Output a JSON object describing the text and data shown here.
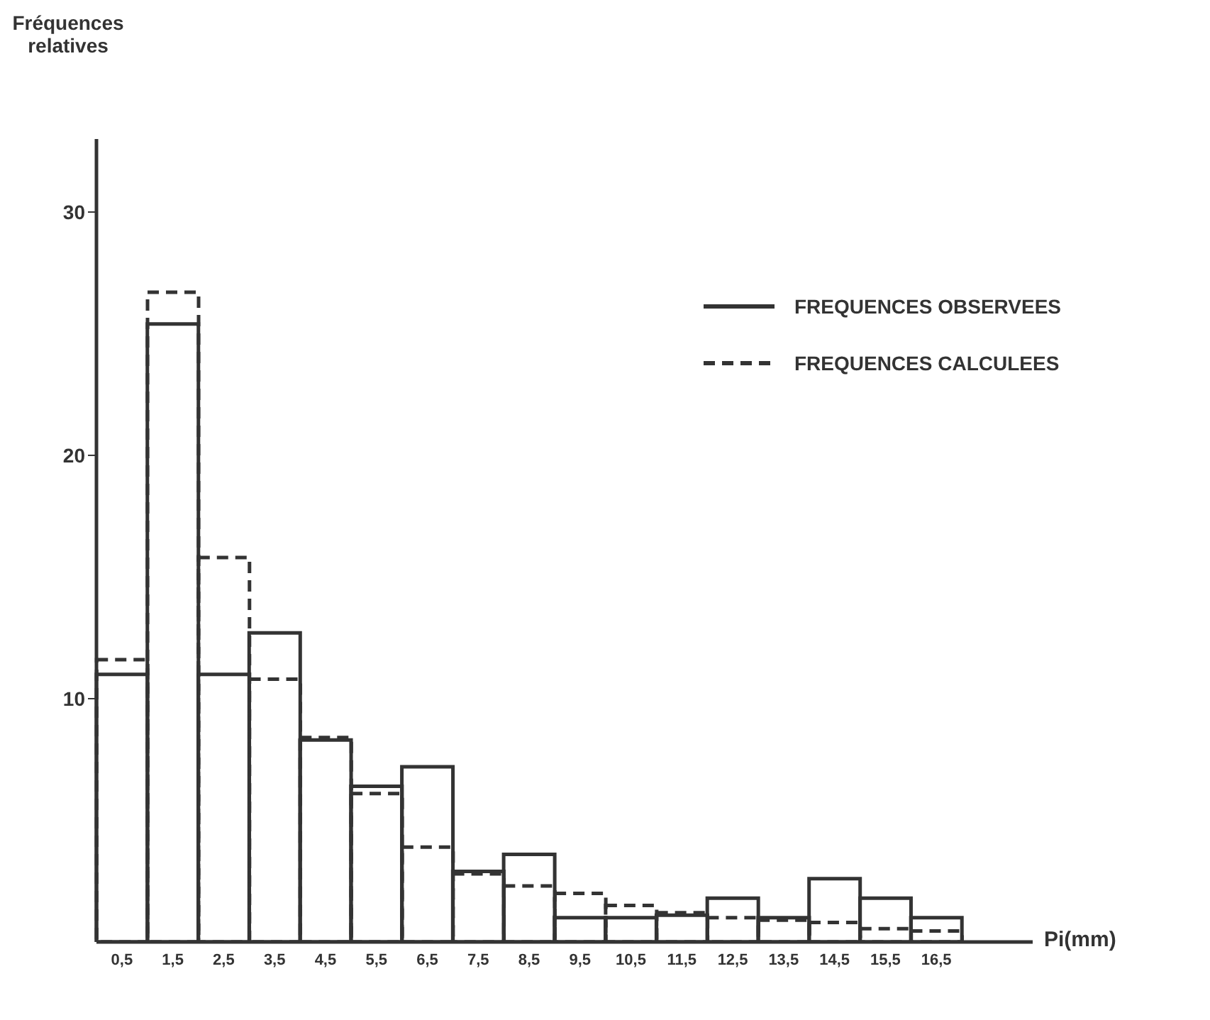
{
  "chart_data": {
    "type": "bar",
    "ylabel": "Fréquences relatives",
    "xlabel": "Pi(mm)",
    "categories": [
      "0,5",
      "1,5",
      "2,5",
      "3,5",
      "4,5",
      "5,5",
      "6,5",
      "7,5",
      "8,5",
      "9,5",
      "10,5",
      "11,5",
      "12,5",
      "13,5",
      "14,5",
      "15,5",
      "16,5"
    ],
    "series": [
      {
        "name": "FREQUENCES OBSERVEES",
        "color": "#333333",
        "line_style": "solid",
        "values": [
          11.0,
          25.4,
          11.0,
          12.7,
          8.3,
          6.4,
          7.2,
          2.9,
          3.6,
          1.0,
          1.0,
          1.1,
          1.8,
          1.0,
          2.6,
          1.8,
          1.0
        ]
      },
      {
        "name": "FREQUENCES CALCULEES",
        "color": "#333333",
        "line_style": "dashed",
        "values": [
          11.6,
          26.7,
          15.8,
          10.8,
          8.4,
          6.1,
          3.9,
          2.8,
          2.3,
          2.0,
          1.5,
          1.2,
          1.0,
          0.9,
          0.8,
          0.55,
          0.45
        ]
      }
    ],
    "ylim": [
      0,
      33
    ],
    "yticks": [
      10,
      20,
      30
    ],
    "legend": "top right"
  }
}
